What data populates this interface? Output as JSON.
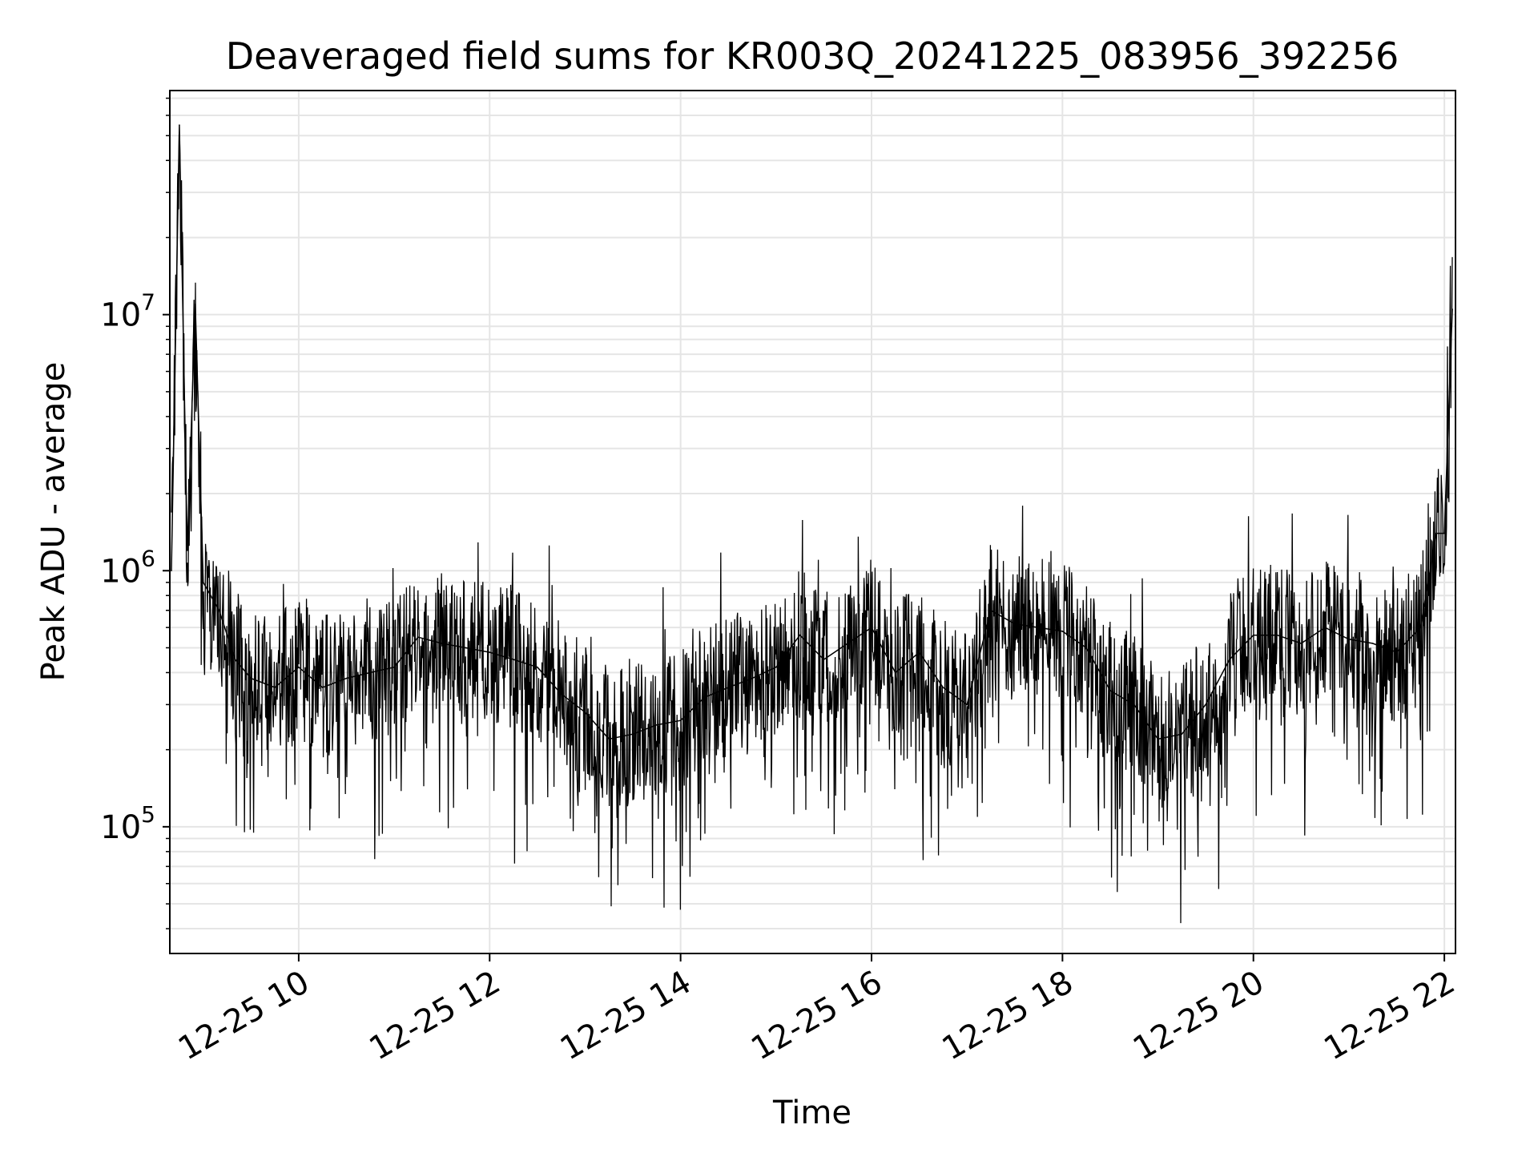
{
  "chart_data": {
    "type": "line",
    "title": "Deaveraged field sums for KR003Q_20241225_083956_392256",
    "xlabel": "Time",
    "ylabel": "Peak ADU - average",
    "xaxis": {
      "kind": "datetime",
      "min": "2024-12-25 08:39",
      "max": "2024-12-25 22:07",
      "ticks": [
        "2024-12-25 10:00",
        "2024-12-25 12:00",
        "2024-12-25 14:00",
        "2024-12-25 16:00",
        "2024-12-25 18:00",
        "2024-12-25 20:00",
        "2024-12-25 22:00"
      ],
      "tick_labels": [
        "12-25 10",
        "12-25 12",
        "12-25 14",
        "12-25 16",
        "12-25 18",
        "12-25 20",
        "12-25 22"
      ]
    },
    "yaxis": {
      "scale": "log",
      "ylim": [
        32000,
        75000000
      ],
      "ticks": [
        100000,
        1000000,
        10000000
      ],
      "tick_labels": [
        {
          "base": "10",
          "exp": "5"
        },
        {
          "base": "10",
          "exp": "6"
        },
        {
          "base": "10",
          "exp": "7"
        }
      ]
    },
    "grid": true,
    "line_color": "#000000",
    "grid_color": "#e5e5e5",
    "series": [
      {
        "x": [
          "2024-12-25 08:40",
          "2024-12-25 08:45",
          "2024-12-25 08:50",
          "2024-12-25 08:55",
          "2024-12-25 09:00",
          "2024-12-25 09:10",
          "2024-12-25 09:20",
          "2024-12-25 09:30",
          "2024-12-25 09:45",
          "2024-12-25 10:00",
          "2024-12-25 10:15",
          "2024-12-25 10:30",
          "2024-12-25 10:45",
          "2024-12-25 11:00",
          "2024-12-25 11:15",
          "2024-12-25 11:30",
          "2024-12-25 11:45",
          "2024-12-25 12:00",
          "2024-12-25 12:15",
          "2024-12-25 12:30",
          "2024-12-25 12:45",
          "2024-12-25 13:00",
          "2024-12-25 13:15",
          "2024-12-25 13:30",
          "2024-12-25 13:45",
          "2024-12-25 14:00",
          "2024-12-25 14:15",
          "2024-12-25 14:30",
          "2024-12-25 14:45",
          "2024-12-25 15:00",
          "2024-12-25 15:15",
          "2024-12-25 15:30",
          "2024-12-25 15:45",
          "2024-12-25 16:00",
          "2024-12-25 16:15",
          "2024-12-25 16:30",
          "2024-12-25 16:45",
          "2024-12-25 17:00",
          "2024-12-25 17:15",
          "2024-12-25 17:30",
          "2024-12-25 17:45",
          "2024-12-25 18:00",
          "2024-12-25 18:15",
          "2024-12-25 18:30",
          "2024-12-25 18:45",
          "2024-12-25 19:00",
          "2024-12-25 19:15",
          "2024-12-25 19:30",
          "2024-12-25 19:45",
          "2024-12-25 20:00",
          "2024-12-25 20:15",
          "2024-12-25 20:30",
          "2024-12-25 20:45",
          "2024-12-25 21:00",
          "2024-12-25 21:15",
          "2024-12-25 21:30",
          "2024-12-25 21:45",
          "2024-12-25 21:55",
          "2024-12-25 22:00",
          "2024-12-25 22:05"
        ],
        "y": [
          1000000,
          55000000,
          1200000,
          11000000,
          900000,
          700000,
          450000,
          380000,
          350000,
          420000,
          350000,
          380000,
          400000,
          420000,
          550000,
          520000,
          500000,
          480000,
          450000,
          420000,
          330000,
          280000,
          220000,
          230000,
          250000,
          260000,
          320000,
          350000,
          380000,
          420000,
          560000,
          450000,
          520000,
          600000,
          400000,
          480000,
          350000,
          300000,
          700000,
          620000,
          600000,
          580000,
          500000,
          340000,
          300000,
          220000,
          230000,
          300000,
          450000,
          560000,
          560000,
          520000,
          600000,
          540000,
          520000,
          480000,
          600000,
          1400000,
          1400000,
          10500000
        ]
      }
    ]
  }
}
